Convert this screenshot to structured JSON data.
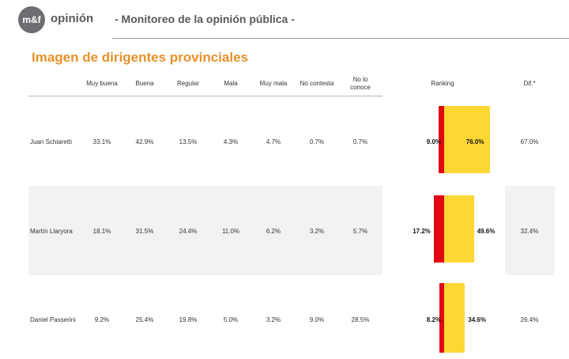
{
  "header": {
    "logo_text": "m&f",
    "brand": "opinión",
    "tagline": "- Monitoreo de la opinión pública -"
  },
  "title": "Imagen de dirigentes provinciales",
  "columns": [
    "Muy buena",
    "Buena",
    "Regular",
    "Mala",
    "Muy mala",
    "No contesta",
    "No lo conoce"
  ],
  "ranking_label": "Ranking",
  "dif_label": "Dif.*",
  "colors": {
    "negative": "#e30613",
    "positive": "#fdd835",
    "title": "#e8912a"
  },
  "chart_data": {
    "type": "table",
    "rows": [
      {
        "name": "Juan Schiaretti",
        "values": [
          "33.1%",
          "42.9%",
          "13.5%",
          "4.3%",
          "4.7%",
          "0.7%",
          "0.7%"
        ],
        "negative": 9.0,
        "positive": 76.0,
        "negative_label": "9.0%",
        "positive_label": "76.0%",
        "dif": "67.0%"
      },
      {
        "name": "Martín Llaryora",
        "values": [
          "18.1%",
          "31.5%",
          "24.4%",
          "11.0%",
          "6.2%",
          "3.2%",
          "5.7%"
        ],
        "negative": 17.2,
        "positive": 49.6,
        "negative_label": "17.2%",
        "positive_label": "49.6%",
        "dif": "32.4%"
      },
      {
        "name": "Daniel Passerini",
        "values": [
          "9.2%",
          "25.4%",
          "19.8%",
          "5.0%",
          "3.2%",
          "9.0%",
          "28.5%"
        ],
        "negative": 8.2,
        "positive": 34.6,
        "negative_label": "8.2%",
        "positive_label": "34.6%",
        "dif": "26.4%"
      }
    ]
  }
}
